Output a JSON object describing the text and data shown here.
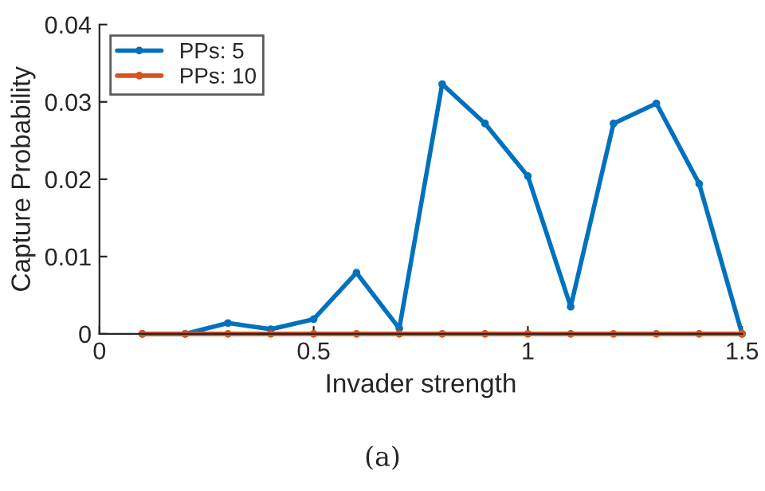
{
  "chart_data": {
    "type": "line",
    "xlabel": "Invader strength",
    "ylabel": "Capture Probability",
    "x": [
      0.1,
      0.2,
      0.3,
      0.4,
      0.5,
      0.6,
      0.7,
      0.8,
      0.9,
      1.0,
      1.1,
      1.2,
      1.3,
      1.4,
      1.5
    ],
    "series": [
      {
        "name": "PPs: 5",
        "color": "#0072bd",
        "values": [
          0,
          0,
          0.0014,
          0.0006,
          0.0019,
          0.0079,
          0.0007,
          0.0323,
          0.0272,
          0.0204,
          0.0035,
          0.0272,
          0.0298,
          0.0194,
          0
        ]
      },
      {
        "name": "PPs: 10",
        "color": "#d95319",
        "values": [
          0,
          0,
          0,
          0,
          0,
          0,
          0,
          0,
          0,
          0,
          0,
          0,
          0,
          0,
          0
        ]
      }
    ],
    "xlim": [
      0,
      1.5
    ],
    "xticks": [
      0,
      0.5,
      1,
      1.5
    ],
    "ylim": [
      0,
      0.04
    ],
    "yticks": [
      0,
      0.01,
      0.02,
      0.03,
      0.04
    ],
    "grid": false,
    "legend": "top left",
    "marker": "circle",
    "line_style": "solid",
    "annotations": [
      "(a)"
    ]
  }
}
